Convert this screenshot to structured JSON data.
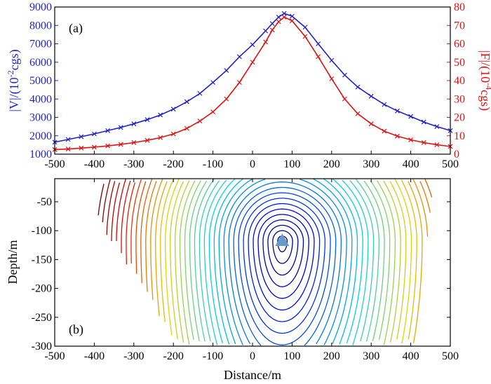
{
  "chart_data": [
    {
      "panel": "(a)",
      "type": "line",
      "xlabel": "",
      "xlim": [
        -500,
        500
      ],
      "xticks": [
        -500,
        -400,
        -300,
        -200,
        -100,
        0,
        100,
        200,
        300,
        400,
        500
      ],
      "ylabel_left": "|V|/(10",
      "ylabel_left_exp": "-2",
      "ylabel_left_unit": "cgs)",
      "ylim_left": [
        1000,
        9000
      ],
      "yticks_left": [
        1000,
        2000,
        3000,
        4000,
        5000,
        6000,
        7000,
        8000,
        9000
      ],
      "ylabel_right": "|F|/(10",
      "ylabel_right_exp": "-4",
      "ylabel_right_unit": "cgs)",
      "ylim_right": [
        0,
        80
      ],
      "yticks_right": [
        0,
        10,
        20,
        30,
        40,
        50,
        60,
        70,
        80
      ],
      "series": [
        {
          "name": "|V|",
          "axis": "left",
          "color": "#1f1fd0",
          "marker": "x",
          "x": [
            -500,
            -466,
            -433,
            -400,
            -366,
            -333,
            -300,
            -266,
            -233,
            -200,
            -166,
            -133,
            -100,
            -66,
            -33,
            0,
            33,
            50,
            66,
            80,
            100,
            133,
            166,
            200,
            233,
            266,
            300,
            333,
            366,
            400,
            433,
            466,
            500
          ],
          "y": [
            1650,
            1800,
            1950,
            2100,
            2280,
            2450,
            2650,
            2880,
            3130,
            3450,
            3850,
            4300,
            4900,
            5550,
            6300,
            6950,
            7700,
            8100,
            8450,
            8650,
            8500,
            7900,
            7000,
            6100,
            5300,
            4650,
            4150,
            3700,
            3350,
            3050,
            2750,
            2500,
            2280
          ]
        },
        {
          "name": "|F|",
          "axis": "right",
          "color": "#e01010",
          "marker": "x",
          "x": [
            -500,
            -466,
            -433,
            -400,
            -366,
            -333,
            -300,
            -266,
            -233,
            -200,
            -166,
            -133,
            -100,
            -66,
            -33,
            0,
            33,
            50,
            66,
            80,
            100,
            133,
            166,
            200,
            233,
            266,
            300,
            333,
            366,
            400,
            433,
            466,
            500
          ],
          "y": [
            2.5,
            2.8,
            3.3,
            3.8,
            4.5,
            5.3,
            6.3,
            7.5,
            9.0,
            11.0,
            14.0,
            18.0,
            23.0,
            30.0,
            39.0,
            50.0,
            61.0,
            67.5,
            72.0,
            74.5,
            72.5,
            64.0,
            53.0,
            41.0,
            30.0,
            22.0,
            16.5,
            12.5,
            9.8,
            7.8,
            6.3,
            5.1,
            4.2
          ]
        }
      ]
    },
    {
      "panel": "(b)",
      "type": "contour",
      "xlabel": "Distance/m",
      "ylabel": "Depth/m",
      "xlim": [
        -500,
        500
      ],
      "xticks": [
        -500,
        -400,
        -300,
        -200,
        -100,
        0,
        100,
        200,
        300,
        400,
        500
      ],
      "ylim": [
        -300,
        -10
      ],
      "yticks": [
        -50,
        -100,
        -150,
        -200,
        -250,
        -300
      ],
      "source": {
        "x": 75,
        "y": -118,
        "marker": "triangle",
        "color": "#6699cc"
      },
      "colormap": "jet (blue near source, red far)"
    }
  ]
}
